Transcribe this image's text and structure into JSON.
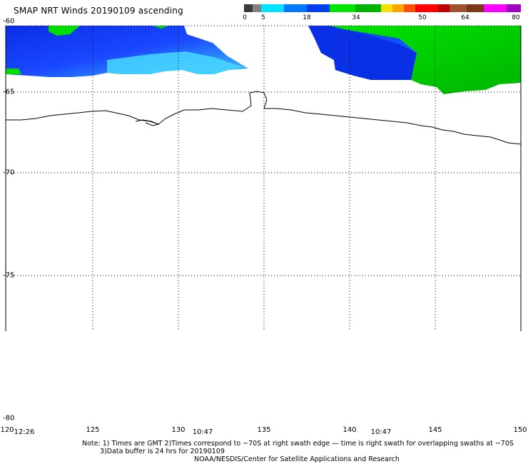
{
  "header": {
    "title": "SMAP NRT Winds 20190109 ascending"
  },
  "colorbar": {
    "labels": [
      "0",
      "5",
      "18",
      "34",
      "50",
      "64",
      "80"
    ],
    "colors": [
      "#3a3a3a",
      "#808080",
      "#00e5ff",
      "#0078ff",
      "#0040f0",
      "#00e600",
      "#00b400",
      "#f5e000",
      "#ffa500",
      "#ff5000",
      "#ff0000",
      "#c00000",
      "#a0522d",
      "#7a3a1a",
      "#ff00ff",
      "#a000c0"
    ]
  },
  "map": {
    "latitude_labels": [
      "-60",
      "-65",
      "-70",
      "-75",
      "-80"
    ],
    "longitude_labels": [
      "120",
      "125",
      "130",
      "135",
      "140",
      "145",
      "150"
    ],
    "swath_times": [
      "12:26",
      "10:47",
      "10:47"
    ],
    "wind_colors": {
      "blue": "#1a3cff",
      "cyan": "#3ccbff",
      "green": "#00dd00",
      "dark_green": "#00b800"
    }
  },
  "footer": {
    "note_line1": "Note: 1) Times are GMT 2)Times correspond to ~70S at right swath edge — time is right swath for overlapping swaths at ~70S",
    "note_line2": "3)Data buffer is 24 hrs for 20190109",
    "credit": "NOAA/NESDIS/Center for Satellite Applications and Research"
  }
}
